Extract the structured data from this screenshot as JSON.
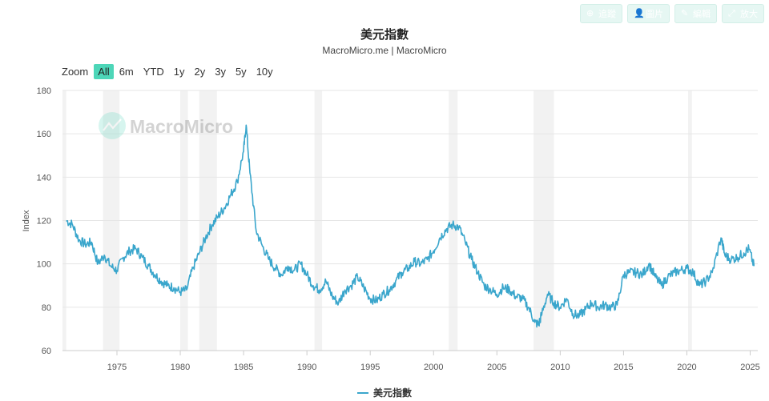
{
  "toolbar": {
    "buttons": [
      {
        "icon": "share-icon",
        "glyph": "⤴",
        "label": "分享",
        "style": "outline"
      },
      {
        "icon": "plus-circle-icon",
        "glyph": "⊕",
        "label": "追蹤",
        "style": "fill"
      },
      {
        "icon": "user-icon",
        "glyph": "👤",
        "label": "圖片",
        "style": "fill"
      },
      {
        "icon": "pencil-icon",
        "glyph": "✎",
        "label": "編輯",
        "style": "fill"
      },
      {
        "icon": "expand-icon",
        "glyph": "⤢",
        "label": "放大",
        "style": "fill"
      }
    ]
  },
  "header": {
    "title": "美元指數",
    "subtitle": "MacroMicro.me | MacroMicro"
  },
  "zoom": {
    "label": "Zoom",
    "options": [
      "All",
      "6m",
      "YTD",
      "1y",
      "2y",
      "3y",
      "5y",
      "10y"
    ],
    "active": "All"
  },
  "watermark": "MacroMicro",
  "legend": {
    "label": "美元指數"
  },
  "colors": {
    "line": "#3aa6cc",
    "accent": "#4dd6b8",
    "recession": "#f2f2f2",
    "grid": "#e6e6e6"
  },
  "chart_data": {
    "type": "line",
    "title": "美元指數",
    "ylabel": "Index",
    "xlim": [
      1970.7,
      2025.6
    ],
    "ylim": [
      60,
      180
    ],
    "yticks": [
      60,
      80,
      100,
      120,
      140,
      160,
      180
    ],
    "xticks": [
      1975,
      1980,
      1985,
      1990,
      1995,
      2000,
      2005,
      2010,
      2015,
      2020,
      2025
    ],
    "grid": "horizontal",
    "legend_position": "bottom-center",
    "recession_bands": [
      [
        1970.7,
        1971.0
      ],
      [
        1973.9,
        1975.2
      ],
      [
        1980.0,
        1980.6
      ],
      [
        1981.5,
        1982.9
      ],
      [
        1990.6,
        1991.2
      ],
      [
        2001.2,
        2001.9
      ],
      [
        2007.9,
        2009.5
      ],
      [
        2020.1,
        2020.4
      ]
    ],
    "series": [
      {
        "name": "美元指數",
        "x": [
          1971.0,
          1971.5,
          1972.0,
          1972.5,
          1973.0,
          1973.5,
          1974.0,
          1974.5,
          1975.0,
          1975.5,
          1976.0,
          1976.5,
          1977.0,
          1977.5,
          1978.0,
          1978.5,
          1979.0,
          1979.5,
          1980.0,
          1980.5,
          1981.0,
          1981.5,
          1982.0,
          1982.5,
          1983.0,
          1983.5,
          1984.0,
          1984.5,
          1985.0,
          1985.2,
          1985.5,
          1986.0,
          1986.5,
          1987.0,
          1987.5,
          1988.0,
          1988.5,
          1989.0,
          1989.5,
          1990.0,
          1990.5,
          1991.0,
          1991.5,
          1992.0,
          1992.5,
          1993.0,
          1993.5,
          1994.0,
          1994.5,
          1995.0,
          1995.5,
          1996.0,
          1996.5,
          1997.0,
          1997.5,
          1998.0,
          1998.5,
          1999.0,
          1999.5,
          2000.0,
          2000.5,
          2001.0,
          2001.5,
          2002.0,
          2002.5,
          2003.0,
          2003.5,
          2004.0,
          2004.5,
          2005.0,
          2005.5,
          2006.0,
          2006.5,
          2007.0,
          2007.5,
          2008.0,
          2008.3,
          2008.5,
          2009.0,
          2009.5,
          2010.0,
          2010.5,
          2011.0,
          2011.5,
          2012.0,
          2012.5,
          2013.0,
          2013.5,
          2014.0,
          2014.5,
          2015.0,
          2015.5,
          2016.0,
          2016.5,
          2017.0,
          2017.5,
          2018.0,
          2018.5,
          2019.0,
          2019.5,
          2020.0,
          2020.5,
          2021.0,
          2021.5,
          2022.0,
          2022.7,
          2023.0,
          2023.5,
          2024.0,
          2024.5,
          2024.9,
          2025.3
        ],
        "y": [
          120,
          118,
          111,
          109,
          110,
          100,
          104,
          99,
          97,
          103,
          106,
          107,
          103,
          99,
          95,
          92,
          90,
          89,
          87,
          88,
          98,
          105,
          112,
          118,
          122,
          126,
          132,
          138,
          152,
          164,
          142,
          115,
          108,
          102,
          98,
          95,
          99,
          97,
          100,
          95,
          90,
          88,
          92,
          85,
          82,
          88,
          90,
          94,
          89,
          84,
          83,
          86,
          88,
          92,
          96,
          98,
          101,
          100,
          102,
          106,
          112,
          116,
          118,
          117,
          110,
          102,
          96,
          90,
          88,
          86,
          89,
          88,
          85,
          84,
          80,
          73,
          72,
          76,
          86,
          82,
          80,
          84,
          77,
          76,
          79,
          82,
          80,
          81,
          80,
          81,
          95,
          96,
          96,
          95,
          100,
          94,
          90,
          94,
          96,
          97,
          98,
          96,
          90,
          92,
          96,
          112,
          104,
          102,
          103,
          105,
          107,
          99
        ]
      }
    ]
  }
}
